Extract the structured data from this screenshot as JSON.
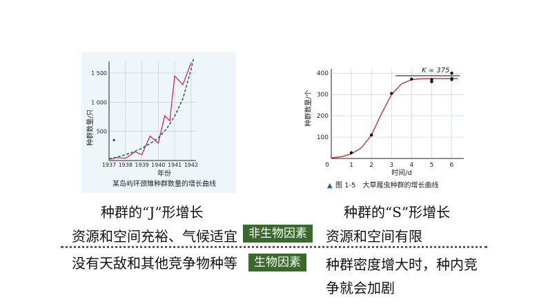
{
  "chart_data": [
    {
      "type": "line",
      "title": "",
      "caption": "某岛屿环颈雉种群数量的增长曲线",
      "xlabel": "年份",
      "ylabel": "种群数量/只",
      "x": [
        1937,
        1938,
        1939,
        1940,
        1941,
        1942
      ],
      "xticks": [
        "1937",
        "1938",
        "1939",
        "1940",
        "1941",
        "1942"
      ],
      "yticks": [
        "500",
        "1 000",
        "1 500"
      ],
      "ylim": [
        0,
        1700
      ],
      "series": [
        {
          "style": "solid",
          "color": "#d4145a",
          "points": [
            [
              1937,
              20
            ],
            [
              1937.5,
              50
            ],
            [
              1938,
              40
            ],
            [
              1938.6,
              150
            ],
            [
              1939,
              100
            ],
            [
              1939.5,
              420
            ],
            [
              1940,
              300
            ],
            [
              1940.4,
              770
            ],
            [
              1940.7,
              680
            ],
            [
              1941,
              1450
            ],
            [
              1941.5,
              1300
            ],
            [
              1942,
              1680
            ]
          ]
        },
        {
          "style": "dashed",
          "color": "#1a7a32",
          "points": [
            [
              1937,
              30
            ],
            [
              1937.5,
              60
            ],
            [
              1938,
              100
            ],
            [
              1938.5,
              150
            ],
            [
              1939,
              210
            ],
            [
              1939.5,
              290
            ],
            [
              1940,
              390
            ],
            [
              1940.5,
              540
            ],
            [
              1941,
              760
            ],
            [
              1941.5,
              1060
            ],
            [
              1942,
              1560
            ],
            [
              1942.15,
              1750
            ]
          ]
        }
      ],
      "dot": [
        1937.3,
        350
      ]
    },
    {
      "type": "line",
      "title": "",
      "caption": "图 1-5　大草履虫种群的增长曲线",
      "caption_marker": "▲",
      "xlabel": "时间/d",
      "ylabel": "种群数量/个",
      "xticks": [
        "0",
        "1",
        "2",
        "3",
        "4",
        "5",
        "6"
      ],
      "yticks": [
        "100",
        "200",
        "300",
        "400"
      ],
      "xlim": [
        0,
        6.6
      ],
      "ylim": [
        0,
        420
      ],
      "k_label": "K = 375",
      "k_value": 375,
      "series": [
        {
          "style": "solid",
          "color": "#c0302a",
          "points": [
            [
              0,
              3
            ],
            [
              0.5,
              8
            ],
            [
              1,
              22
            ],
            [
              1.5,
              50
            ],
            [
              2,
              110
            ],
            [
              2.5,
              210
            ],
            [
              3,
              300
            ],
            [
              3.5,
              350
            ],
            [
              4,
              370
            ],
            [
              4.5,
              374
            ],
            [
              5,
              375
            ],
            [
              5.5,
              375
            ],
            [
              6,
              375
            ],
            [
              6.3,
              375
            ]
          ]
        }
      ],
      "points": [
        [
          1,
          27
        ],
        [
          2,
          110
        ],
        [
          3,
          305
        ],
        [
          4,
          372
        ],
        [
          5,
          370
        ],
        [
          5,
          360
        ],
        [
          6,
          375
        ],
        [
          6,
          400
        ],
        [
          6,
          370
        ]
      ]
    }
  ],
  "labels": {
    "j_title": "种群的“J”形增长",
    "s_title": "种群的“S”形增长",
    "left_row1": "资源和空间充裕、气候适宜",
    "right_row1": "资源和空间有限",
    "left_row2": "没有天敌和其他竞争物种等",
    "right_row2_line1": "种群密度增大时，种内竞",
    "right_row2_line2": "争就会加剧",
    "tag_abiotic": "非生物因素",
    "tag_biotic": "生物因素"
  }
}
